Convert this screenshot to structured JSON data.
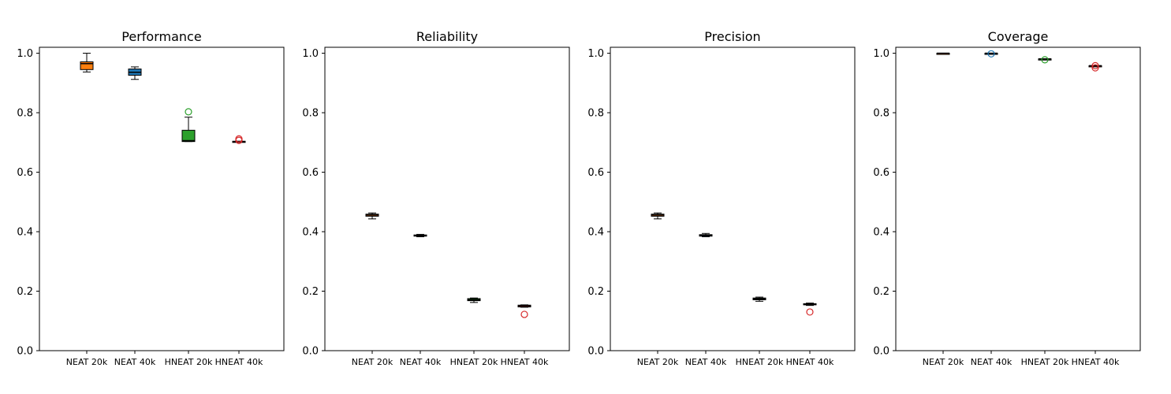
{
  "chart_data": [
    {
      "type": "box",
      "title": "Performance",
      "categories": [
        "NEAT 20k",
        "NEAT 40k",
        "HNEAT 20k",
        "HNEAT 40k"
      ],
      "ylim": [
        0,
        1.02
      ],
      "yticks": [
        "0.0",
        "0.2",
        "0.4",
        "0.6",
        "0.8",
        "1.0"
      ],
      "grid": false,
      "series": [
        {
          "whisker_low": 0.937,
          "q1": 0.945,
          "median": 0.965,
          "q3": 0.971,
          "whisker_high": 1.0,
          "outliers": []
        },
        {
          "whisker_low": 0.912,
          "q1": 0.926,
          "median": 0.936,
          "q3": 0.947,
          "whisker_high": 0.954,
          "outliers": []
        },
        {
          "whisker_low": 0.703,
          "q1": 0.703,
          "median": 0.706,
          "q3": 0.741,
          "whisker_high": 0.785,
          "outliers": [
            0.803
          ]
        },
        {
          "whisker_low": 0.702,
          "q1": 0.702,
          "median": 0.703,
          "q3": 0.704,
          "whisker_high": 0.704,
          "outliers": [
            0.707,
            0.712
          ]
        }
      ]
    },
    {
      "type": "box",
      "title": "Reliability",
      "categories": [
        "NEAT 20k",
        "NEAT 40k",
        "HNEAT 20k",
        "HNEAT 40k"
      ],
      "ylim": [
        0,
        1.02
      ],
      "yticks": [
        "0.0",
        "0.2",
        "0.4",
        "0.6",
        "0.8",
        "1.0"
      ],
      "grid": false,
      "series": [
        {
          "whisker_low": 0.443,
          "q1": 0.452,
          "median": 0.456,
          "q3": 0.459,
          "whisker_high": 0.463,
          "outliers": []
        },
        {
          "whisker_low": 0.383,
          "q1": 0.385,
          "median": 0.387,
          "q3": 0.389,
          "whisker_high": 0.391,
          "outliers": []
        },
        {
          "whisker_low": 0.162,
          "q1": 0.168,
          "median": 0.171,
          "q3": 0.175,
          "whisker_high": 0.177,
          "outliers": []
        },
        {
          "whisker_low": 0.146,
          "q1": 0.147,
          "median": 0.151,
          "q3": 0.153,
          "whisker_high": 0.154,
          "outliers": [
            0.122
          ]
        }
      ]
    },
    {
      "type": "box",
      "title": "Precision",
      "categories": [
        "NEAT 20k",
        "NEAT 40k",
        "HNEAT 20k",
        "HNEAT 40k"
      ],
      "ylim": [
        0,
        1.02
      ],
      "yticks": [
        "0.0",
        "0.2",
        "0.4",
        "0.6",
        "0.8",
        "1.0"
      ],
      "grid": false,
      "series": [
        {
          "whisker_low": 0.443,
          "q1": 0.452,
          "median": 0.456,
          "q3": 0.459,
          "whisker_high": 0.463,
          "outliers": []
        },
        {
          "whisker_low": 0.383,
          "q1": 0.385,
          "median": 0.388,
          "q3": 0.39,
          "whisker_high": 0.394,
          "outliers": []
        },
        {
          "whisker_low": 0.166,
          "q1": 0.171,
          "median": 0.174,
          "q3": 0.177,
          "whisker_high": 0.18,
          "outliers": []
        },
        {
          "whisker_low": 0.152,
          "q1": 0.154,
          "median": 0.156,
          "q3": 0.158,
          "whisker_high": 0.16,
          "outliers": [
            0.13
          ]
        }
      ]
    },
    {
      "type": "box",
      "title": "Coverage",
      "categories": [
        "NEAT 20k",
        "NEAT 40k",
        "HNEAT 20k",
        "HNEAT 40k"
      ],
      "ylim": [
        0,
        1.02
      ],
      "yticks": [
        "0.0",
        "0.2",
        "0.4",
        "0.6",
        "0.8",
        "1.0"
      ],
      "grid": false,
      "series": [
        {
          "whisker_low": 1.0,
          "q1": 1.0,
          "median": 1.0,
          "q3": 1.0,
          "whisker_high": 1.0,
          "outliers": []
        },
        {
          "whisker_low": 1.0,
          "q1": 1.0,
          "median": 1.0,
          "q3": 1.0,
          "whisker_high": 1.0,
          "outliers": [
            0.998
          ]
        },
        {
          "whisker_low": 0.981,
          "q1": 0.981,
          "median": 0.981,
          "q3": 0.981,
          "whisker_high": 0.981,
          "outliers": [
            0.978
          ]
        },
        {
          "whisker_low": 0.958,
          "q1": 0.958,
          "median": 0.958,
          "q3": 0.958,
          "whisker_high": 0.958,
          "outliers": [
            0.951,
            0.958
          ]
        }
      ]
    }
  ],
  "colors": [
    "#ff7f0e",
    "#1f77b4",
    "#2ca02c",
    "#d62728"
  ]
}
